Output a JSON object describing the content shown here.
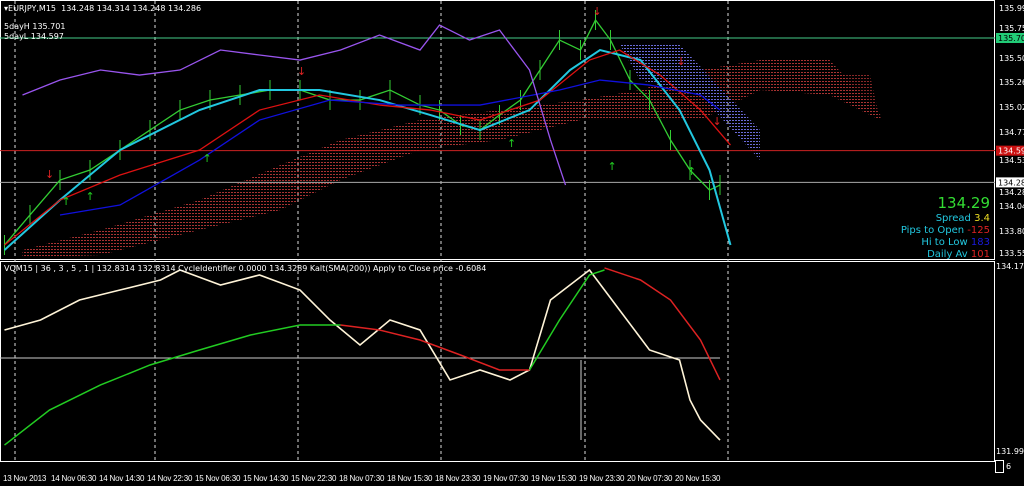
{
  "header": {
    "symbol": "EURJPY,M15",
    "ohlc": "134.248 134.314 134.248 134.286",
    "five_day_high": "5dayH 135.701",
    "five_day_low": "5dayL 134.597"
  },
  "subwindow": {
    "label": "VQM15 | 36 , 3 , 5 , 1 | 132.8314 132.8314 CycleIdentifier 0.0000 134.3289 Kalt(SMA(200)) Apply to Close price -0.6084"
  },
  "info_panel": {
    "price": "134.29",
    "spread_label": "Spread",
    "spread_value": "3.4",
    "pips_label": "Pips to Open",
    "pips_value": "-125",
    "hilo_label": "Hi to Low",
    "hilo_value": "183",
    "daily_label": "Daily Av",
    "daily_value": "101"
  },
  "colors": {
    "price": "#33cc33",
    "ma_cyan": "#22c8e0",
    "ma_red": "#dd1111",
    "ma_blue": "#1010dd",
    "purple": "#9955ee",
    "cloud": "#a83232",
    "high_line": "#44cc88",
    "low_line": "#cc2222",
    "osc": "#fff4d8",
    "up": "#22cc22",
    "down": "#dd2222"
  },
  "chart_data": [
    {
      "type": "line",
      "title": "EURJPY,M15",
      "x_unit": "bar index (M15)",
      "ylim": [
        133.555,
        135.995
      ],
      "yticks": [
        "135.995",
        "135.750",
        "135.505",
        "135.265",
        "135.020",
        "134.775",
        "134.530",
        "134.286",
        "134.045",
        "133.800",
        "133.555"
      ],
      "price_tags": {
        "high": "135.701",
        "low": "134.597",
        "last": "134.286"
      },
      "xticks": [
        "13 Nov 2013",
        "14 Nov 06:30",
        "14 Nov 14:30",
        "14 Nov 22:30",
        "15 Nov 06:30",
        "15 Nov 14:30",
        "15 Nov 22:30",
        "18 Nov 07:30",
        "18 Nov 15:30",
        "18 Nov 23:30",
        "19 Nov 07:30",
        "19 Nov 15:30",
        "19 Nov 23:30",
        "20 Nov 07:30",
        "20 Nov 15:30"
      ],
      "grid": "vertical dashed",
      "series": [
        {
          "key": "price",
          "x": [
            1,
            18,
            38,
            58,
            78,
            98,
            118,
            138,
            158,
            178,
            198,
            218,
            238,
            258,
            278,
            291,
            305,
            318,
            331,
            345,
            358,
            371,
            385,
            395,
            405,
            418,
            431,
            445,
            458,
            471,
            478
          ],
          "y": [
            133.673,
            133.967,
            134.309,
            134.407,
            134.603,
            134.799,
            134.995,
            135.093,
            135.142,
            135.191,
            135.191,
            135.093,
            135.093,
            135.191,
            135.044,
            134.995,
            134.848,
            134.799,
            134.946,
            135.093,
            135.387,
            135.681,
            135.583,
            135.877,
            135.681,
            135.289,
            135.093,
            134.701,
            134.407,
            134.211,
            134.26
          ]
        },
        {
          "key": "ma_cyan",
          "x": [
            1,
            38,
            78,
            131,
            171,
            211,
            251,
            285,
            318,
            351,
            378,
            398,
            425,
            451,
            471,
            485
          ],
          "y": [
            133.623,
            134.113,
            134.603,
            134.995,
            135.191,
            135.191,
            135.093,
            134.946,
            134.799,
            134.995,
            135.387,
            135.583,
            135.485,
            134.995,
            134.407,
            133.672
          ]
        },
        {
          "key": "ma_red",
          "x": [
            1,
            38,
            78,
            131,
            171,
            211,
            251,
            285,
            318,
            358,
            391,
            411,
            438,
            465,
            485
          ],
          "y": [
            133.672,
            134.113,
            134.358,
            134.603,
            134.995,
            135.142,
            135.044,
            134.995,
            134.897,
            135.093,
            135.485,
            135.583,
            135.338,
            134.995,
            134.652
          ]
        },
        {
          "key": "ma_blue",
          "x": [
            38,
            78,
            131,
            171,
            218,
            265,
            318,
            371,
            398,
            431,
            465,
            478
          ],
          "y": [
            133.966,
            134.064,
            134.505,
            134.897,
            135.093,
            135.044,
            135.044,
            135.191,
            135.289,
            135.24,
            135.142,
            134.995
          ]
        },
        {
          "key": "purple",
          "x": [
            13,
            38,
            65,
            91,
            118,
            145,
            171,
            198,
            225,
            251,
            278,
            291,
            311,
            331,
            351,
            365,
            375
          ],
          "y": [
            135.142,
            135.289,
            135.387,
            135.338,
            135.387,
            135.583,
            135.534,
            135.485,
            135.583,
            135.73,
            135.583,
            135.828,
            135.681,
            135.779,
            135.387,
            134.701,
            134.26
          ]
        }
      ],
      "cloud": {
        "x": [
          13,
          65,
          131,
          185,
          225,
          278,
          331,
          385,
          425,
          465,
          505,
          551,
          585
        ],
        "upper": [
          133.623,
          133.819,
          134.113,
          134.456,
          134.701,
          134.897,
          134.995,
          135.093,
          135.191,
          135.387,
          135.485,
          135.485,
          134.946
        ],
        "lower": [
          133.545,
          133.574,
          133.819,
          134.015,
          134.309,
          134.603,
          134.701,
          134.897,
          134.897,
          134.897,
          135.191,
          135.142,
          134.897
        ]
      },
      "levels": {
        "high": 135.701,
        "low": 134.597,
        "last": 134.286
      },
      "signals_down": [
        [
          30,
          134.329
        ],
        [
          198,
          135.338
        ],
        [
          395,
          135.926
        ],
        [
          451,
          135.436
        ],
        [
          475,
          134.848
        ]
      ],
      "signals_up": [
        [
          41,
          134.064
        ],
        [
          57,
          134.113
        ],
        [
          135,
          134.486
        ],
        [
          338,
          134.633
        ],
        [
          405,
          134.407
        ],
        [
          458,
          134.358
        ]
      ]
    },
    {
      "type": "line",
      "title": "VQM15",
      "ylim": [
        131.9932,
        134.1772
      ],
      "yticks": [
        "134.1772",
        "131.9932"
      ],
      "series": [
        {
          "key": "osc",
          "x": [
            1,
            25,
            51,
            78,
            105,
            118,
            145,
            171,
            198,
            218,
            238,
            258,
            278,
            298,
            318,
            338,
            351,
            365,
            378,
            391,
            411,
            431,
            451,
            458,
            465,
            478
          ],
          "y": [
            133.426,
            133.543,
            133.778,
            133.895,
            134.013,
            134.13,
            133.954,
            134.072,
            133.895,
            133.543,
            133.25,
            133.543,
            133.426,
            132.839,
            132.956,
            132.839,
            132.956,
            133.778,
            133.954,
            134.13,
            133.661,
            133.191,
            133.073,
            132.604,
            132.369,
            132.134
          ]
        },
        {
          "key": "up",
          "x": [
            1,
            31,
            65,
            98,
            131,
            165,
            198,
            225
          ],
          "y": [
            132.075,
            132.486,
            132.78,
            133.015,
            133.191,
            133.367,
            133.484,
            133.484
          ]
        },
        {
          "key": "down",
          "x": [
            225,
            251,
            278,
            305,
            331,
            351
          ],
          "y": [
            133.484,
            133.426,
            133.308,
            133.132,
            132.956,
            132.956
          ]
        },
        {
          "key": "up",
          "x": [
            351,
            371,
            391,
            401
          ],
          "y": [
            132.956,
            133.543,
            134.072,
            134.13
          ]
        },
        {
          "key": "down",
          "x": [
            401,
            425,
            445,
            465,
            478
          ],
          "y": [
            134.154,
            134.013,
            133.778,
            133.308,
            132.839
          ]
        }
      ],
      "level": 133.0
    }
  ],
  "scale_corner": "6"
}
